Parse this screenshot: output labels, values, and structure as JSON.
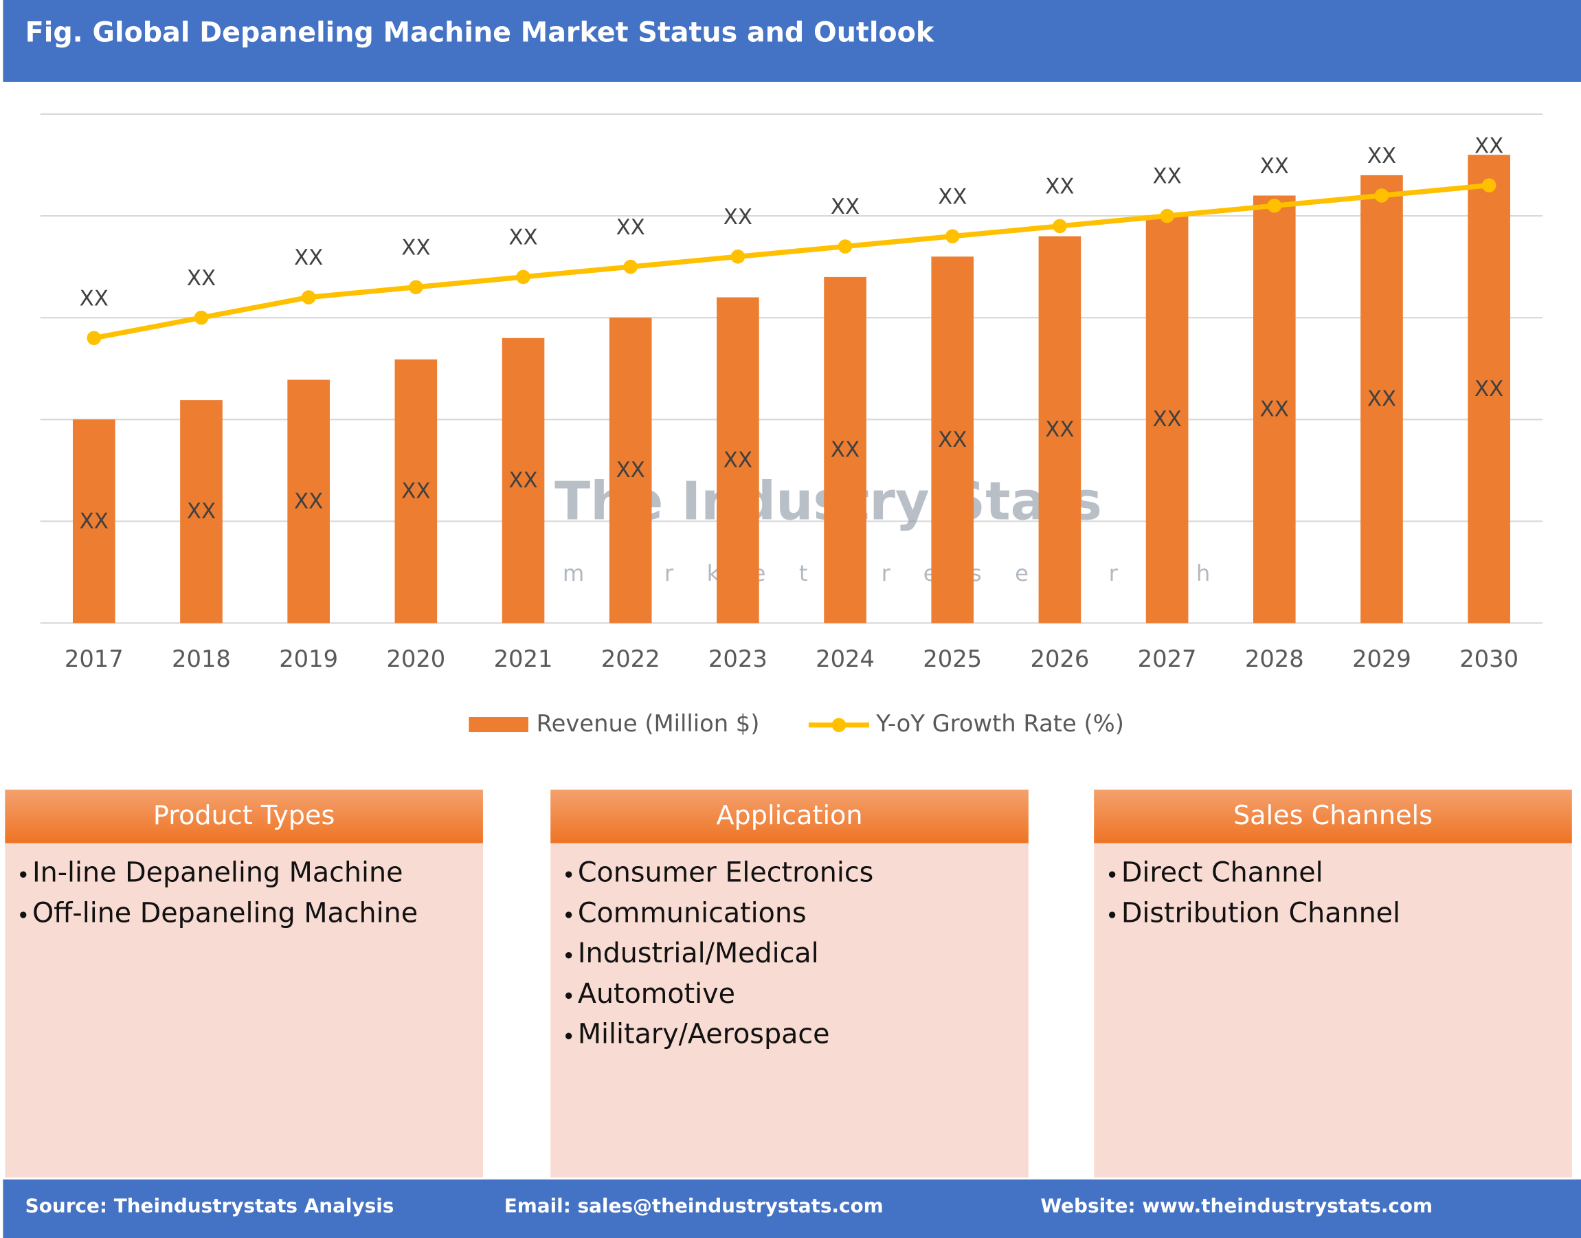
{
  "chart_data": {
    "type": "bar_line",
    "title": "Fig. Global Depaneling Machine Market Status and Outlook",
    "categories": [
      "2017",
      "2018",
      "2019",
      "2020",
      "2021",
      "2022",
      "2023",
      "2024",
      "2025",
      "2026",
      "2027",
      "2028",
      "2029",
      "2030"
    ],
    "series": [
      {
        "name": "Revenue (Million $)",
        "type": "bar",
        "color": "#ed7d31",
        "values": [
          2.0,
          2.19,
          2.39,
          2.59,
          2.8,
          3.0,
          3.2,
          3.4,
          3.6,
          3.8,
          4.0,
          4.2,
          4.4,
          4.6
        ],
        "value_labels": [
          "XX",
          "XX",
          "XX",
          "XX",
          "XX",
          "XX",
          "XX",
          "XX",
          "XX",
          "XX",
          "XX",
          "XX",
          "XX",
          "XX"
        ]
      },
      {
        "name": "Y-oY Growth Rate (%)",
        "type": "line",
        "color": "#ffc000",
        "values": [
          2.8,
          3.0,
          3.2,
          3.3,
          3.4,
          3.5,
          3.6,
          3.7,
          3.8,
          3.9,
          4.0,
          4.1,
          4.2,
          4.3
        ],
        "value_labels": [
          "XX",
          "XX",
          "XX",
          "XX",
          "XX",
          "XX",
          "XX",
          "XX",
          "XX",
          "XX",
          "XX",
          "XX",
          "XX",
          "XX"
        ]
      }
    ],
    "ylim": [
      0,
      5
    ],
    "yticks": [
      0,
      1,
      2,
      3,
      4,
      5
    ],
    "grid": true,
    "legend": "bottom"
  },
  "watermark": {
    "name": "The Industry Stats",
    "tagline": "market research"
  },
  "panels": [
    {
      "title": "Product Types",
      "items": [
        "In-line Depaneling Machine",
        "Off-line Depaneling Machine"
      ]
    },
    {
      "title": "Application",
      "items": [
        "Consumer Electronics",
        "Communications",
        "Industrial/Medical",
        "Automotive",
        "Military/Aerospace"
      ]
    },
    {
      "title": "Sales Channels",
      "items": [
        "Direct Channel",
        "Distribution Channel"
      ]
    }
  ],
  "footer": {
    "source": "Source: Theindustrystats Analysis",
    "email": "Email: sales@theindustrystats.com",
    "website": "Website: www.theindustrystats.com"
  }
}
